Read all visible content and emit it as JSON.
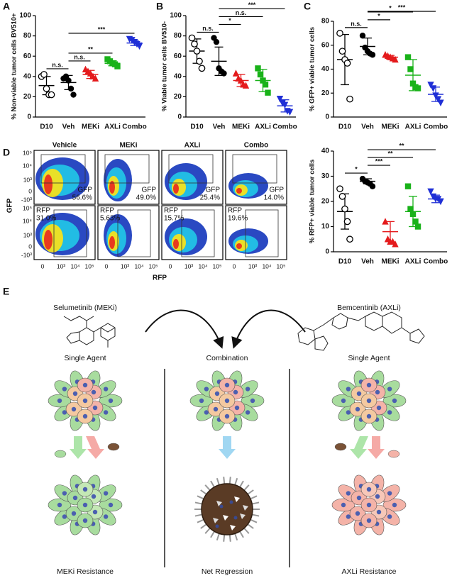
{
  "panel_labels": [
    "A",
    "B",
    "C",
    "D",
    "E"
  ],
  "chart_data": [
    {
      "type": "strip",
      "ylabel": "% Non-viable tumor cells BV510+",
      "categories": [
        "D10",
        "Veh",
        "MEKi",
        "AXLi",
        "Combo"
      ],
      "colors": [
        "#000000",
        "#000000",
        "#e41a1c",
        "#19b219",
        "#1f2fd6"
      ],
      "markers": [
        "circle-open",
        "circle",
        "triangle",
        "square",
        "triangle-down"
      ],
      "points": [
        [
          40,
          42,
          28,
          22,
          22
        ],
        [
          38,
          40,
          36,
          28,
          22
        ],
        [
          47,
          45,
          43,
          40,
          38
        ],
        [
          57,
          55,
          53,
          52,
          50
        ],
        [
          77,
          76,
          74,
          72,
          70
        ]
      ],
      "means": [
        31,
        34,
        42,
        53,
        73
      ],
      "sd": [
        9,
        7,
        4,
        2.5,
        2.5
      ],
      "brackets": [
        {
          "from": 0,
          "to": 1,
          "label": "n.s."
        },
        {
          "from": 1,
          "to": 2,
          "label": "n.s."
        },
        {
          "from": 1,
          "to": 3,
          "label": "**"
        },
        {
          "from": 1,
          "to": 4,
          "label": "***"
        }
      ],
      "ylim": [
        0,
        100
      ],
      "yticks": [
        0,
        20,
        40,
        60,
        80,
        100
      ]
    },
    {
      "type": "strip",
      "ylabel": "% Viable tumor cells BV510-",
      "categories": [
        "D10",
        "Veh",
        "MEKi",
        "AXLi",
        "Combo"
      ],
      "colors": [
        "#000000",
        "#000000",
        "#e41a1c",
        "#19b219",
        "#1f2fd6"
      ],
      "markers": [
        "circle-open",
        "circle",
        "triangle",
        "square",
        "triangle-down"
      ],
      "points": [
        [
          78,
          72,
          65,
          55,
          48
        ],
        [
          78,
          74,
          48,
          45,
          43
        ],
        [
          43,
          38,
          36,
          32,
          31
        ],
        [
          48,
          42,
          36,
          32,
          24
        ],
        [
          18,
          14,
          12,
          6,
          5
        ]
      ],
      "means": [
        65,
        55,
        36,
        36,
        11
      ],
      "sd": [
        12,
        14,
        6,
        11,
        6
      ],
      "brackets": [
        {
          "from": 0,
          "to": 1,
          "label": "n.s."
        },
        {
          "from": 1,
          "to": 2,
          "label": "*"
        },
        {
          "from": 1,
          "to": 3,
          "label": "n.s."
        },
        {
          "from": 1,
          "to": 4,
          "label": "***"
        }
      ],
      "ylim": [
        0,
        100
      ],
      "yticks": [
        0,
        20,
        40,
        60,
        80,
        100
      ]
    },
    {
      "type": "strip",
      "ylabel": "% GFP+ viable tumor cells",
      "categories": [
        "D10",
        "Veh",
        "MEKi",
        "AXLi",
        "Combo"
      ],
      "colors": [
        "#000000",
        "#000000",
        "#e41a1c",
        "#19b219",
        "#1f2fd6"
      ],
      "markers": [
        "circle-open",
        "circle",
        "triangle",
        "square",
        "triangle-down"
      ],
      "points": [
        [
          70,
          55,
          48,
          45,
          15
        ],
        [
          68,
          58,
          55,
          53,
          52
        ],
        [
          52,
          51,
          50,
          49,
          48
        ],
        [
          50,
          40,
          28,
          25,
          24
        ],
        [
          27,
          24,
          18,
          15,
          12
        ]
      ],
      "means": [
        48,
        59,
        50,
        35,
        19
      ],
      "sd": [
        21,
        7,
        1.5,
        13,
        6
      ],
      "brackets": [
        {
          "from": 0,
          "to": 1,
          "label": "n.s."
        },
        {
          "from": 1,
          "to": 2,
          "label": "*"
        },
        {
          "from": 1,
          "to": 3,
          "label": "*"
        },
        {
          "from": 1,
          "to": 4,
          "label": "***"
        }
      ],
      "ylim": [
        0,
        80
      ],
      "yticks": [
        0,
        20,
        40,
        60,
        80
      ]
    },
    {
      "type": "strip",
      "ylabel": "% RFP+ viable tumor cells",
      "categories": [
        "D10",
        "Veh",
        "MEKi",
        "AXLi",
        "Combo"
      ],
      "colors": [
        "#000000",
        "#000000",
        "#e41a1c",
        "#19b219",
        "#1f2fd6"
      ],
      "markers": [
        "circle-open",
        "circle",
        "triangle",
        "square",
        "triangle-down"
      ],
      "points": [
        [
          25,
          22,
          17,
          12,
          5
        ],
        [
          29,
          28,
          27.5,
          27,
          26
        ],
        [
          12,
          5,
          4,
          4,
          3
        ],
        [
          26,
          17,
          15,
          12,
          10
        ],
        [
          24,
          22,
          21,
          21,
          20
        ]
      ],
      "means": [
        16,
        28,
        8,
        16,
        21
      ],
      "sd": [
        7,
        1,
        4,
        6,
        1.5
      ],
      "brackets": [
        {
          "from": 0,
          "to": 1,
          "label": "*"
        },
        {
          "from": 1,
          "to": 2,
          "label": "***"
        },
        {
          "from": 1,
          "to": 3,
          "label": "**"
        },
        {
          "from": 1,
          "to": 4,
          "label": "**"
        }
      ],
      "ylim": [
        0,
        40
      ],
      "yticks": [
        0,
        10,
        20,
        30,
        40
      ]
    }
  ],
  "flow": {
    "columns": [
      "Vehicle",
      "MEKi",
      "AXLi",
      "Combo"
    ],
    "ylabel": "GFP",
    "xlabel": "RFP",
    "yticks": [
      "10⁵",
      "10⁴",
      "10³",
      "0",
      "-10³"
    ],
    "xticks": [
      "0",
      "10³",
      "10⁴",
      "10⁵"
    ],
    "gfp_gates": [
      {
        "label": "GFP",
        "value": "56.6%"
      },
      {
        "label": "GFP",
        "value": "49.0%"
      },
      {
        "label": "GFP",
        "value": "25.4%"
      },
      {
        "label": "GFP",
        "value": "14.0%"
      }
    ],
    "rfp_gates": [
      {
        "label": "RFP",
        "value": "31.0%"
      },
      {
        "label": "RFP",
        "value": "5.63%"
      },
      {
        "label": "RFP",
        "value": "15.7%"
      },
      {
        "label": "RFP",
        "value": "19.6%"
      }
    ]
  },
  "schematic": {
    "left_drug": "Selumetinib (MEKi)",
    "right_drug": "Bemcentinib (AXLi)",
    "left_mode": "Single Agent",
    "middle_mode": "Combination",
    "right_mode": "Single Agent",
    "left_outcome": "MEKi Resistance",
    "middle_outcome": "Net Regression",
    "right_outcome": "AXLi Resistance"
  }
}
